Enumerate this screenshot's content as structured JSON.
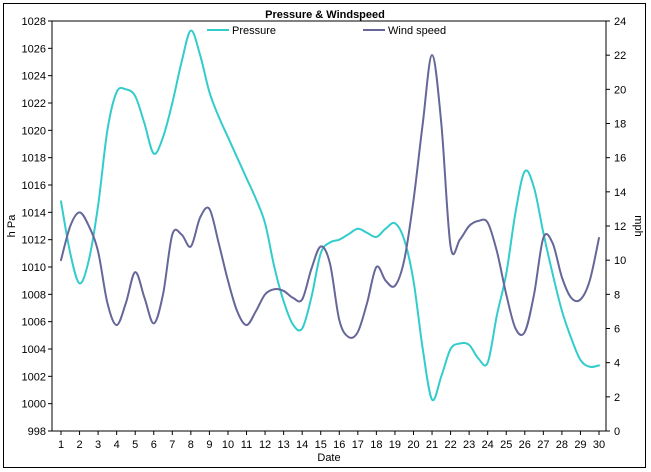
{
  "chart_data": {
    "type": "line",
    "title": "Pressure & Windspeed",
    "xlabel": "Date",
    "ylabel_left": "h Pa",
    "ylabel_right": "mph",
    "x": [
      1,
      2,
      3,
      4,
      5,
      6,
      7,
      8,
      9,
      10,
      11,
      12,
      13,
      14,
      15,
      16,
      17,
      18,
      19,
      20,
      21,
      22,
      23,
      24,
      25,
      26,
      27,
      28,
      29,
      30
    ],
    "y_left_range": [
      998,
      1028
    ],
    "y_left_ticks": [
      998,
      1000,
      1002,
      1004,
      1006,
      1008,
      1010,
      1012,
      1014,
      1016,
      1018,
      1020,
      1022,
      1024,
      1026,
      1028
    ],
    "y_right_range": [
      0,
      24
    ],
    "y_right_ticks": [
      0,
      2,
      4,
      6,
      8,
      10,
      12,
      14,
      16,
      18,
      20,
      22,
      24
    ],
    "legend_position": "top",
    "grid": false,
    "series": [
      {
        "name": "Pressure",
        "axis": "left",
        "color": "#33CCCC",
        "points": [
          [
            1,
            1014.8
          ],
          [
            1.5,
            1011.0
          ],
          [
            2,
            1008.8
          ],
          [
            2.5,
            1010.5
          ],
          [
            3,
            1014.5
          ],
          [
            3.5,
            1020.0
          ],
          [
            4,
            1022.8
          ],
          [
            4.5,
            1023.0
          ],
          [
            5,
            1022.5
          ],
          [
            5.5,
            1020.5
          ],
          [
            6,
            1018.3
          ],
          [
            6.5,
            1019.5
          ],
          [
            7,
            1022.0
          ],
          [
            7.5,
            1025.0
          ],
          [
            8,
            1027.3
          ],
          [
            8.5,
            1025.5
          ],
          [
            9,
            1022.8
          ],
          [
            9.5,
            1021.0
          ],
          [
            10,
            1019.5
          ],
          [
            10.5,
            1018.0
          ],
          [
            11,
            1016.5
          ],
          [
            11.5,
            1015.0
          ],
          [
            12,
            1013.2
          ],
          [
            12.5,
            1010.0
          ],
          [
            13,
            1007.5
          ],
          [
            13.5,
            1005.8
          ],
          [
            14,
            1005.5
          ],
          [
            14.5,
            1007.8
          ],
          [
            15,
            1011.0
          ],
          [
            15.5,
            1011.8
          ],
          [
            16,
            1012.0
          ],
          [
            16.5,
            1012.4
          ],
          [
            17,
            1012.8
          ],
          [
            17.5,
            1012.5
          ],
          [
            18,
            1012.2
          ],
          [
            18.5,
            1012.8
          ],
          [
            19,
            1013.2
          ],
          [
            19.5,
            1012.0
          ],
          [
            20,
            1009.0
          ],
          [
            20.5,
            1004.0
          ],
          [
            21,
            1000.3
          ],
          [
            21.5,
            1002.0
          ],
          [
            22,
            1004.0
          ],
          [
            22.5,
            1004.4
          ],
          [
            23,
            1004.3
          ],
          [
            23.5,
            1003.3
          ],
          [
            24,
            1003.0
          ],
          [
            24.5,
            1006.5
          ],
          [
            25,
            1009.5
          ],
          [
            25.5,
            1014.0
          ],
          [
            26,
            1017.0
          ],
          [
            26.5,
            1015.8
          ],
          [
            27,
            1012.5
          ],
          [
            27.5,
            1009.5
          ],
          [
            28,
            1006.8
          ],
          [
            28.5,
            1004.8
          ],
          [
            29,
            1003.2
          ],
          [
            29.5,
            1002.7
          ],
          [
            30,
            1002.8
          ]
        ]
      },
      {
        "name": "Wind speed",
        "axis": "right",
        "color": "#666699",
        "points": [
          [
            1,
            10.0
          ],
          [
            1.5,
            12.0
          ],
          [
            2,
            12.8
          ],
          [
            2.5,
            12.0
          ],
          [
            3,
            10.5
          ],
          [
            3.5,
            7.5
          ],
          [
            4,
            6.2
          ],
          [
            4.5,
            7.5
          ],
          [
            5,
            9.3
          ],
          [
            5.5,
            7.8
          ],
          [
            6,
            6.3
          ],
          [
            6.5,
            8.0
          ],
          [
            7,
            11.5
          ],
          [
            7.5,
            11.5
          ],
          [
            8,
            10.8
          ],
          [
            8.5,
            12.5
          ],
          [
            9,
            13.0
          ],
          [
            9.5,
            11.0
          ],
          [
            10,
            8.8
          ],
          [
            10.5,
            7.0
          ],
          [
            11,
            6.2
          ],
          [
            11.5,
            7.0
          ],
          [
            12,
            8.0
          ],
          [
            12.5,
            8.3
          ],
          [
            13,
            8.2
          ],
          [
            13.5,
            7.8
          ],
          [
            14,
            7.7
          ],
          [
            14.5,
            9.5
          ],
          [
            15,
            10.8
          ],
          [
            15.5,
            9.8
          ],
          [
            16,
            6.5
          ],
          [
            16.5,
            5.5
          ],
          [
            17,
            5.8
          ],
          [
            17.5,
            7.5
          ],
          [
            18,
            9.6
          ],
          [
            18.5,
            8.8
          ],
          [
            19,
            8.5
          ],
          [
            19.5,
            10.0
          ],
          [
            20,
            13.5
          ],
          [
            20.5,
            18.0
          ],
          [
            21,
            22.0
          ],
          [
            21.5,
            18.0
          ],
          [
            22,
            10.8
          ],
          [
            22.5,
            11.2
          ],
          [
            23,
            12.0
          ],
          [
            23.5,
            12.3
          ],
          [
            24,
            12.2
          ],
          [
            24.5,
            10.5
          ],
          [
            25,
            8.0
          ],
          [
            25.5,
            6.0
          ],
          [
            26,
            5.8
          ],
          [
            26.5,
            8.0
          ],
          [
            27,
            11.3
          ],
          [
            27.5,
            11.0
          ],
          [
            28,
            9.0
          ],
          [
            28.5,
            7.8
          ],
          [
            29,
            7.7
          ],
          [
            29.5,
            8.8
          ],
          [
            30,
            11.3
          ]
        ]
      }
    ]
  }
}
